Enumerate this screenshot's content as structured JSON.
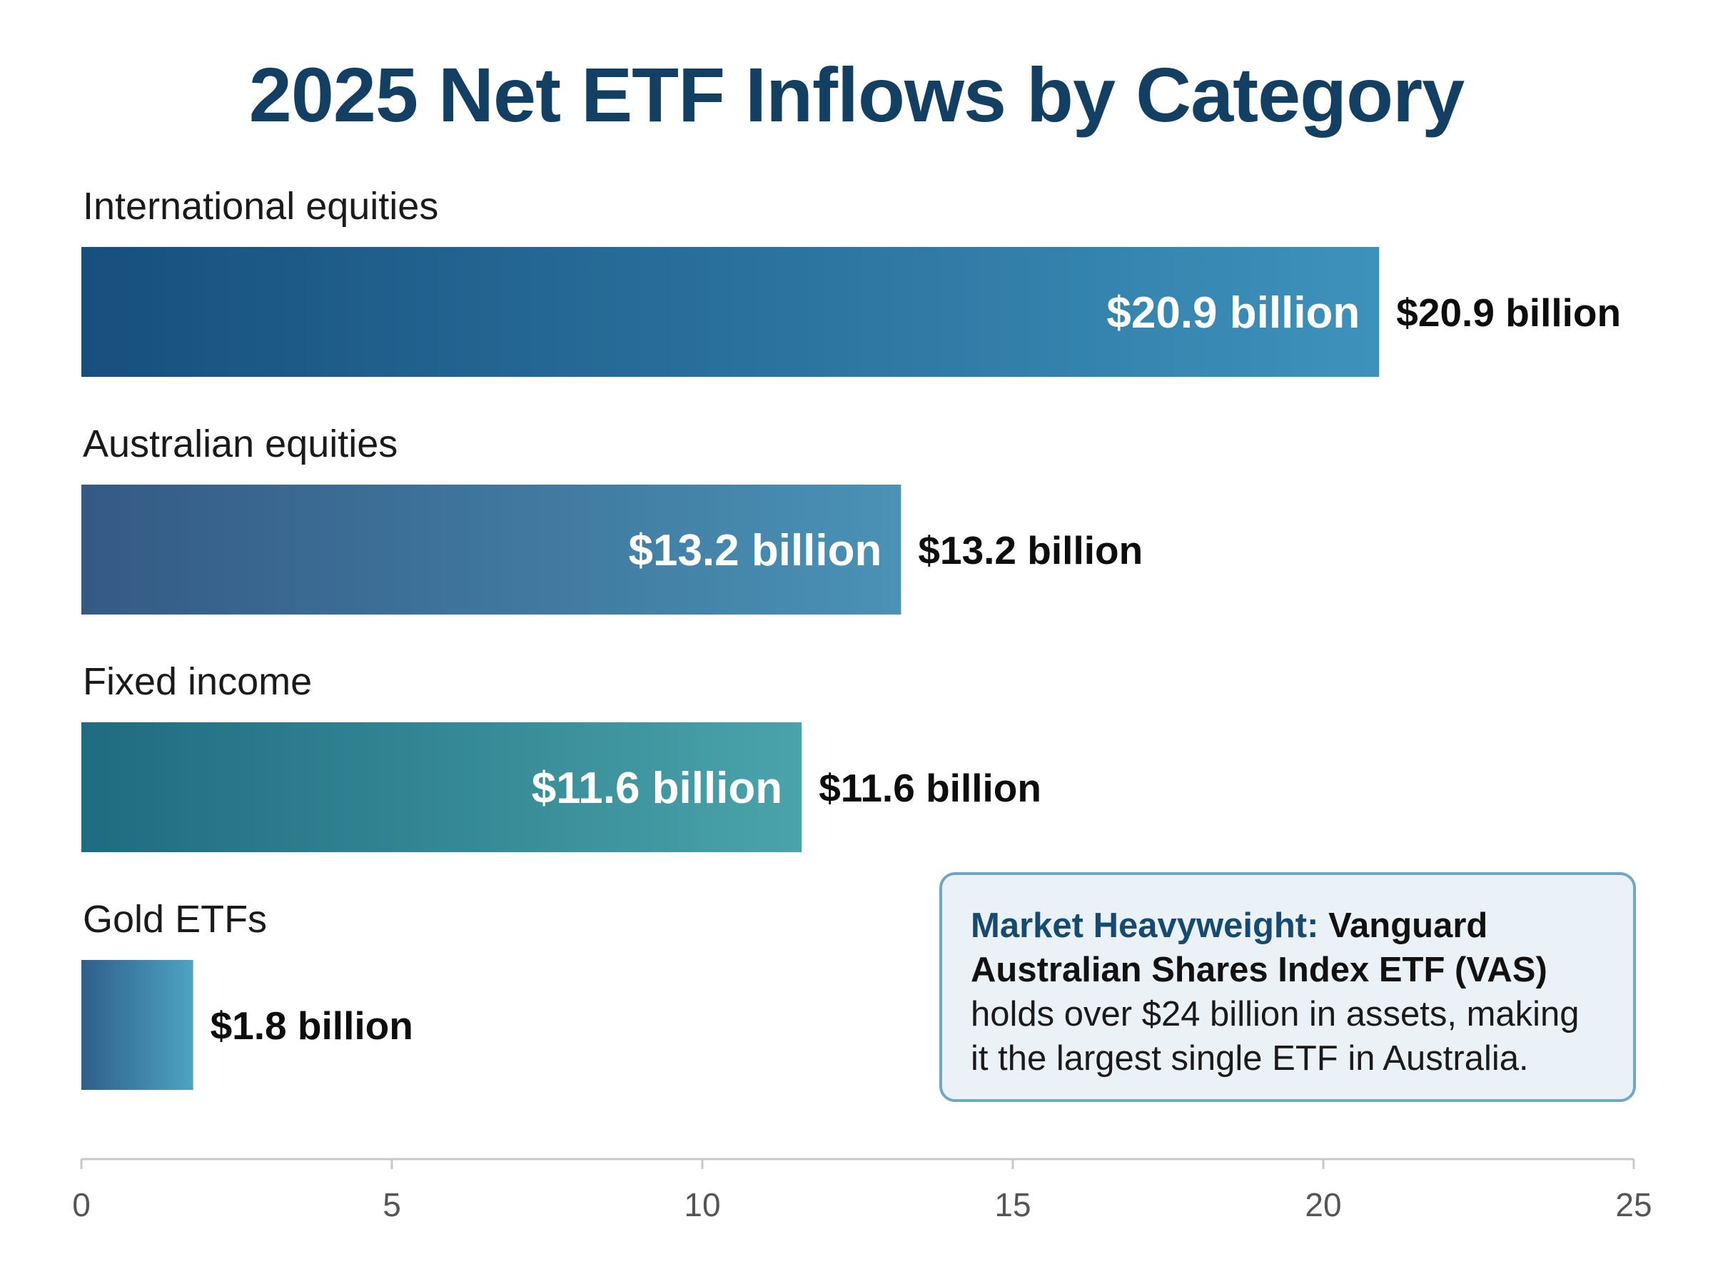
{
  "title": "2025 Net ETF Inflows by Category",
  "colors": {
    "title": "#133f62",
    "category_label": "#1a1a1a",
    "value_label_outside": "#0d0d0d",
    "value_label_inside": "#ffffff",
    "axis_line": "#c8c8c8",
    "tick_label": "#555555",
    "callout_border": "#6fa8c2",
    "callout_fill": "#eaf2f8",
    "callout_lead": "#174a70"
  },
  "chart_data": {
    "type": "bar",
    "orientation": "horizontal",
    "categories": [
      "International equities",
      "Australian equities",
      "Fixed income",
      "Gold ETFs"
    ],
    "values": [
      20.9,
      13.2,
      11.6,
      1.8
    ],
    "value_labels": [
      "$20.9 billion",
      "$13.2 billion",
      "$11.6 billion",
      "$1.8 billion"
    ],
    "bar_gradients": [
      [
        "#174f7e",
        "#3d92bb"
      ],
      [
        "#345a84",
        "#4a92b6"
      ],
      [
        "#1f6b80",
        "#4aa3aa"
      ],
      [
        "#2f5f8a",
        "#4da3c2"
      ]
    ],
    "xlim": [
      0,
      25
    ],
    "xticks": [
      0,
      5,
      10,
      15,
      20,
      25
    ],
    "xlabel": "",
    "ylabel": "",
    "grid": false,
    "legend": "none"
  },
  "callout": {
    "lead": "Market Heavyweight:",
    "strong": "Vanguard Australian Shares Index ETF (VAS)",
    "body": "holds over $24 billion in assets, making it the largest single ETF in Australia."
  }
}
